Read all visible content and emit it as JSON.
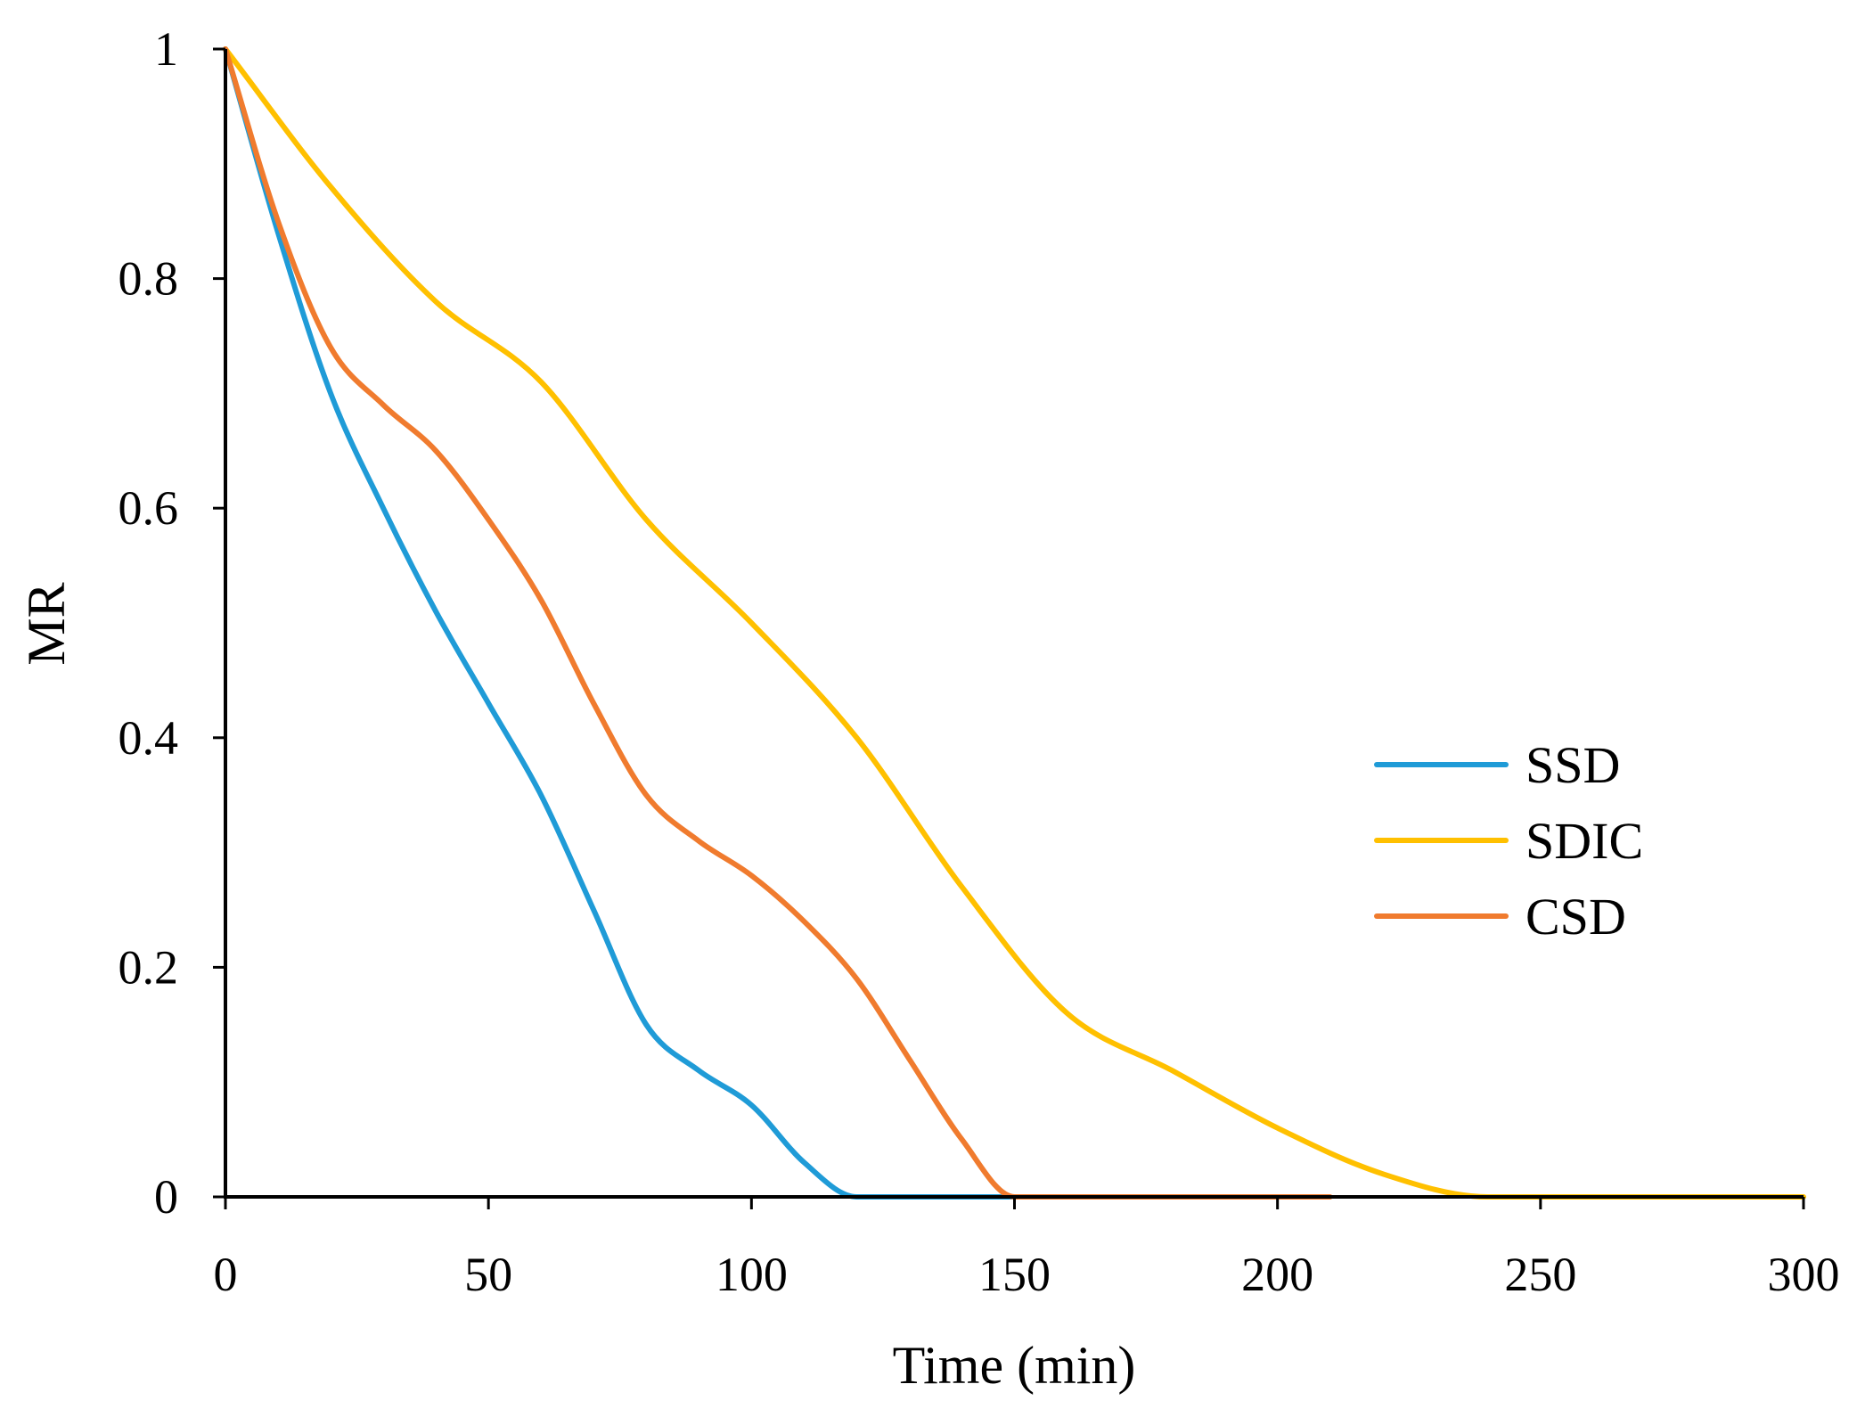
{
  "chart_data": {
    "type": "line",
    "title": "",
    "xlabel": "Time (min)",
    "ylabel": "MR",
    "xlim": [
      0,
      300
    ],
    "ylim": [
      0,
      1
    ],
    "x_ticks": [
      "0",
      "50",
      "100",
      "150",
      "200",
      "250",
      "300"
    ],
    "y_ticks": [
      "0",
      "0.2",
      "0.4",
      "0.6",
      "0.8",
      "1"
    ],
    "grid": false,
    "legend_position": "right",
    "series": [
      {
        "name": "SSD",
        "color": "#1f9bd7",
        "x": [
          0,
          10,
          20,
          30,
          40,
          50,
          60,
          70,
          80,
          90,
          100,
          110,
          120,
          130,
          140,
          150
        ],
        "y": [
          1,
          0.84,
          0.7,
          0.6,
          0.51,
          0.43,
          0.35,
          0.25,
          0.15,
          0.11,
          0.08,
          0.03,
          0,
          0,
          0,
          0
        ]
      },
      {
        "name": "SDIC",
        "color": "#ffc000",
        "x": [
          0,
          20,
          40,
          60,
          80,
          100,
          120,
          140,
          160,
          180,
          200,
          220,
          240,
          260,
          280,
          300
        ],
        "y": [
          1,
          0.88,
          0.78,
          0.71,
          0.59,
          0.5,
          0.4,
          0.27,
          0.16,
          0.11,
          0.06,
          0.02,
          0,
          0,
          0,
          0
        ]
      },
      {
        "name": "CSD",
        "color": "#f07b2e",
        "x": [
          0,
          10,
          20,
          30,
          40,
          50,
          60,
          70,
          80,
          90,
          100,
          110,
          120,
          130,
          140,
          150,
          160,
          170,
          180,
          190,
          200,
          210
        ],
        "y": [
          1,
          0.85,
          0.74,
          0.69,
          0.65,
          0.59,
          0.52,
          0.43,
          0.35,
          0.31,
          0.28,
          0.24,
          0.19,
          0.12,
          0.05,
          0,
          0,
          0,
          0,
          0,
          0,
          0
        ]
      }
    ]
  }
}
